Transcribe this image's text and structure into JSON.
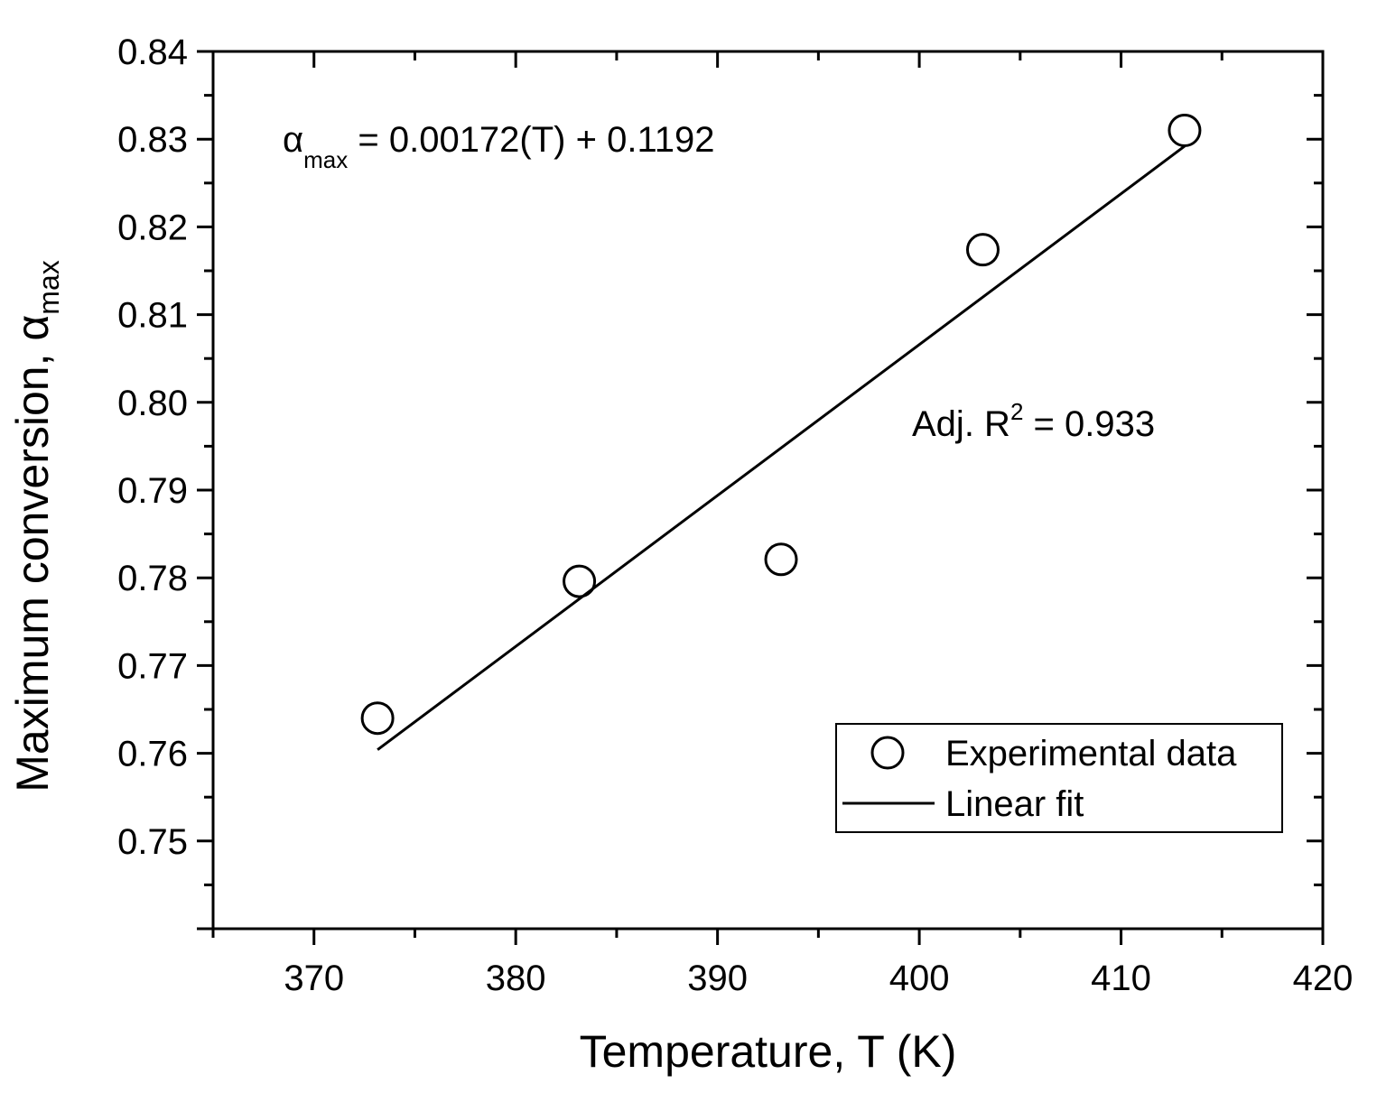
{
  "chart_data": {
    "type": "scatter",
    "title": "",
    "xlabel": "Temperature, T (K)",
    "ylabel": {
      "main": "Maximum conversion, ",
      "symbol": "α",
      "subscript": "max"
    },
    "xlim": [
      365,
      420
    ],
    "ylim": [
      0.74,
      0.84
    ],
    "xticks": [
      "370",
      "380",
      "390",
      "400",
      "410",
      "420"
    ],
    "yticks": [
      "0.75",
      "0.76",
      "0.77",
      "0.78",
      "0.79",
      "0.80",
      "0.81",
      "0.82",
      "0.83",
      "0.84"
    ],
    "grid": false,
    "series": [
      {
        "name": "Experimental data",
        "kind": "scatter",
        "marker": "open-circle",
        "x": [
          373.15,
          383.15,
          393.15,
          403.15,
          413.15
        ],
        "y": [
          0.764,
          0.7796,
          0.7821,
          0.8174,
          0.831
        ]
      },
      {
        "name": "Linear fit",
        "kind": "line",
        "x": [
          373.15,
          413.15
        ],
        "y": [
          0.7604,
          0.8292
        ]
      }
    ],
    "annotations": {
      "equation": {
        "symbol": "α",
        "subscript": "max",
        "rest": " = 0.00172(T) + 0.1192"
      },
      "r2": {
        "prefix": "Adj. R",
        "sup": "2",
        "rest": " = 0.933"
      }
    },
    "legend": {
      "position": "bottom-right",
      "entries": [
        "Experimental data",
        "Linear fit"
      ]
    }
  }
}
